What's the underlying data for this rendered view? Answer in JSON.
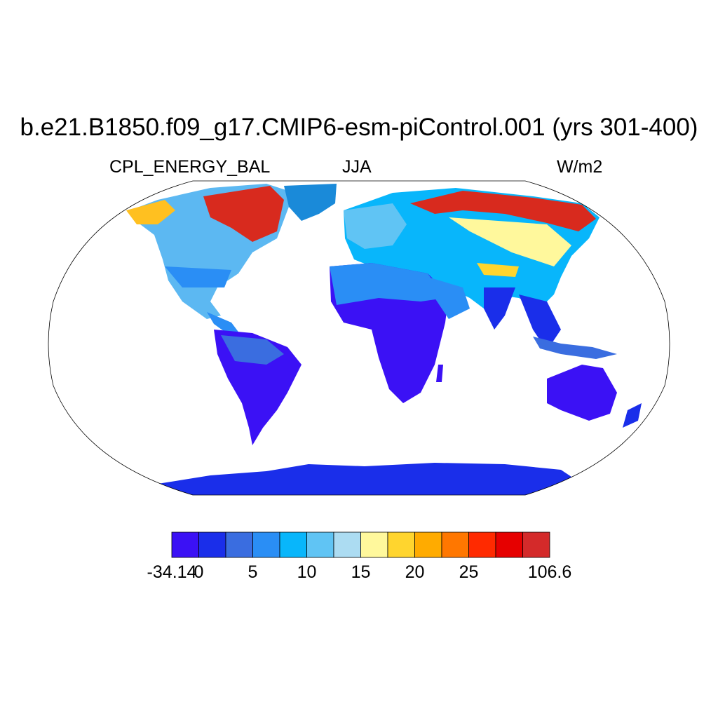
{
  "title": "b.e21.B1850.f09_g17.CMIP6-esm-piControl.001 (yrs 301-400)",
  "variable": "CPL_ENERGY_BAL",
  "season": "JJA",
  "units": "W/m2",
  "projection": "Robinson",
  "colorbar": {
    "colors": [
      "#3b11f5",
      "#1a2eea",
      "#3a6de0",
      "#2a8ef5",
      "#08b6fb",
      "#60c4f4",
      "#acdcf2",
      "#fff89c",
      "#ffd52e",
      "#ffab00",
      "#ff7700",
      "#ff2a00",
      "#e60000",
      "#d42a2a"
    ],
    "tick_labels": [
      "-34.14",
      "0",
      "5",
      "10",
      "15",
      "20",
      "25",
      "106.6"
    ]
  },
  "colors": {
    "ocean": "#ffffff",
    "coast": "#000000"
  },
  "chart_data": {
    "type": "heatmap",
    "title": "b.e21.B1850.f09_g17.CMIP6-esm-piControl.001 (yrs 301-400)",
    "variable": "CPL_ENERGY_BAL",
    "season": "JJA",
    "units": "W/m2",
    "levels": [
      "-34.14",
      "0",
      "5",
      "10",
      "15",
      "20",
      "25",
      "106.6"
    ]
  }
}
